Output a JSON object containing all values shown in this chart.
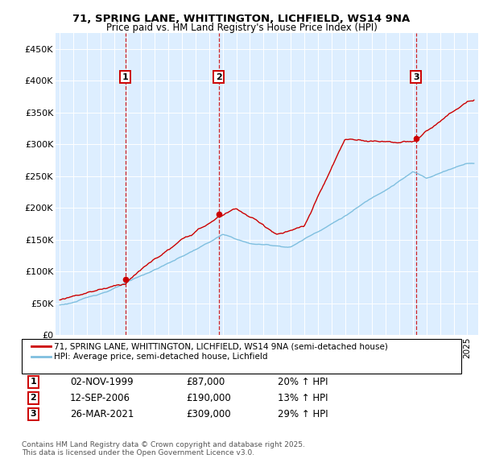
{
  "title": "71, SPRING LANE, WHITTINGTON, LICHFIELD, WS14 9NA",
  "subtitle": "Price paid vs. HM Land Registry's House Price Index (HPI)",
  "hpi_color": "#7fbfdf",
  "price_color": "#cc0000",
  "plot_bg": "#ddeeff",
  "ylabel_ticks": [
    "£0",
    "£50K",
    "£100K",
    "£150K",
    "£200K",
    "£250K",
    "£300K",
    "£350K",
    "£400K",
    "£450K"
  ],
  "ytick_values": [
    0,
    50000,
    100000,
    150000,
    200000,
    250000,
    300000,
    350000,
    400000,
    450000
  ],
  "ylim": [
    0,
    475000
  ],
  "xlim_start": 1994.7,
  "xlim_end": 2025.8,
  "sale_dates": [
    1999.84,
    2006.71,
    2021.23
  ],
  "sale_prices": [
    87000,
    190000,
    309000
  ],
  "sale_labels": [
    "1",
    "2",
    "3"
  ],
  "sale_date_strs": [
    "02-NOV-1999",
    "12-SEP-2006",
    "26-MAR-2021"
  ],
  "sale_price_strs": [
    "£87,000",
    "£190,000",
    "£309,000"
  ],
  "sale_hpi_strs": [
    "20% ↑ HPI",
    "13% ↑ HPI",
    "29% ↑ HPI"
  ],
  "legend_line1": "71, SPRING LANE, WHITTINGTON, LICHFIELD, WS14 9NA (semi-detached house)",
  "legend_line2": "HPI: Average price, semi-detached house, Lichfield",
  "footnote": "Contains HM Land Registry data © Crown copyright and database right 2025.\nThis data is licensed under the Open Government Licence v3.0."
}
